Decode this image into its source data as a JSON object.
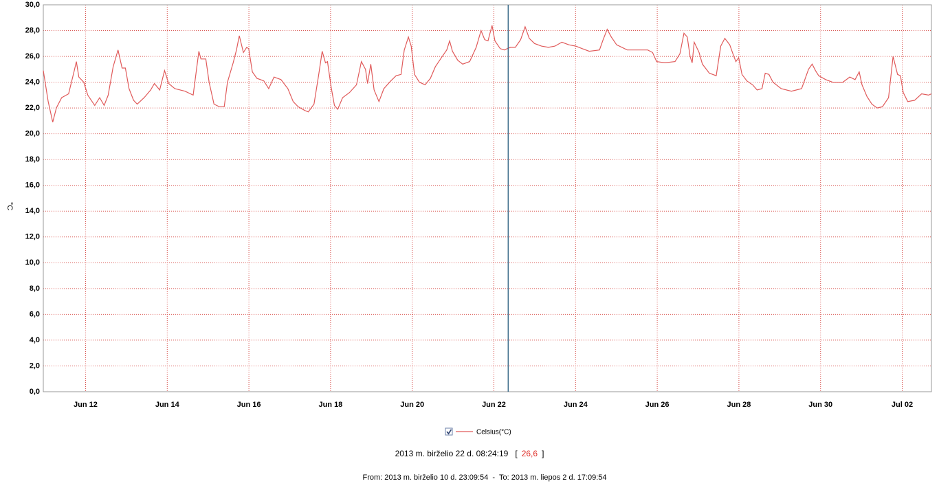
{
  "chart_data": {
    "type": "line",
    "y_label": "°C",
    "x": [
      0,
      0.12,
      0.23,
      0.32,
      0.45,
      0.62,
      0.75,
      0.81,
      0.87,
      0.99,
      1.09,
      1.26,
      1.38,
      1.49,
      1.59,
      1.71,
      1.83,
      1.93,
      2.01,
      2.1,
      2.21,
      2.3,
      2.47,
      2.63,
      2.72,
      2.85,
      2.97,
      3.07,
      3.22,
      3.47,
      3.67,
      3.81,
      3.86,
      3.98,
      4.06,
      4.18,
      4.31,
      4.43,
      4.51,
      4.65,
      4.73,
      4.8,
      4.9,
      4.98,
      5.03,
      5.12,
      5.23,
      5.4,
      5.52,
      5.65,
      5.82,
      5.99,
      6.12,
      6.24,
      6.41,
      6.49,
      6.63,
      6.74,
      6.83,
      6.91,
      6.96,
      7.05,
      7.13,
      7.21,
      7.33,
      7.5,
      7.67,
      7.79,
      7.89,
      7.94,
      8.02,
      8.1,
      8.22,
      8.34,
      8.51,
      8.64,
      8.76,
      8.84,
      8.94,
      9.01,
      9.09,
      9.21,
      9.35,
      9.48,
      9.6,
      9.77,
      9.88,
      9.95,
      10.02,
      10.15,
      10.27,
      10.44,
      10.6,
      10.72,
      10.81,
      10.89,
      10.99,
      11.06,
      11.19,
      11.29,
      11.36,
      11.44,
      11.56,
      11.69,
      11.8,
      11.9,
      12.03,
      12.2,
      12.37,
      12.53,
      12.7,
      12.87,
      13.04,
      13.2,
      13.37,
      13.62,
      13.71,
      13.81,
      13.91,
      14.04,
      14.3,
      14.55,
      14.8,
      14.92,
      15.02,
      15.22,
      15.47,
      15.59,
      15.69,
      15.77,
      15.84,
      15.89,
      15.94,
      16.06,
      16.14,
      16.31,
      16.48,
      16.59,
      16.69,
      16.81,
      16.9,
      16.96,
      17.03,
      17.11,
      17.23,
      17.37,
      17.48,
      17.6,
      17.68,
      17.77,
      17.87,
      18.07,
      18.32,
      18.57,
      18.74,
      18.83,
      18.91,
      18.99,
      19.16,
      19.33,
      19.58,
      19.75,
      19.88,
      19.98,
      20.05,
      20.17,
      20.29,
      20.42,
      20.55,
      20.7,
      20.81,
      20.92,
      20.99,
      21.06,
      21.17,
      21.34,
      21.51,
      21.68,
      21.75
    ],
    "series": [
      {
        "name": "Celsius(°C)",
        "color": "#e05a5a",
        "values": [
          24.9,
          22.5,
          20.9,
          22.0,
          22.8,
          23.1,
          24.8,
          25.6,
          24.4,
          24.0,
          23.0,
          22.2,
          22.8,
          22.2,
          23.0,
          25.2,
          26.5,
          25.1,
          25.1,
          23.5,
          22.6,
          22.3,
          22.8,
          23.4,
          23.9,
          23.4,
          24.9,
          23.9,
          23.5,
          23.3,
          23.0,
          26.4,
          25.8,
          25.8,
          24.0,
          22.3,
          22.1,
          22.1,
          24.0,
          25.5,
          26.5,
          27.6,
          26.3,
          26.7,
          26.6,
          24.8,
          24.3,
          24.1,
          23.5,
          24.4,
          24.2,
          23.5,
          22.5,
          22.1,
          21.8,
          21.7,
          22.3,
          24.5,
          26.4,
          25.5,
          25.6,
          23.6,
          22.2,
          21.9,
          22.8,
          23.2,
          23.8,
          25.6,
          25.0,
          23.9,
          25.4,
          23.4,
          22.5,
          23.5,
          24.1,
          24.5,
          24.6,
          26.5,
          27.5,
          26.8,
          24.6,
          24.0,
          23.8,
          24.3,
          25.2,
          26.0,
          26.5,
          27.2,
          26.4,
          25.7,
          25.4,
          25.6,
          26.7,
          28.0,
          27.3,
          27.2,
          28.4,
          27.2,
          26.6,
          26.5,
          26.6,
          26.7,
          26.7,
          27.3,
          28.3,
          27.4,
          27.0,
          26.8,
          26.7,
          26.8,
          27.1,
          26.9,
          26.8,
          26.6,
          26.4,
          26.5,
          27.3,
          28.1,
          27.5,
          26.9,
          26.5,
          26.5,
          26.5,
          26.3,
          25.6,
          25.5,
          25.6,
          26.2,
          27.8,
          27.5,
          26.0,
          25.5,
          27.1,
          26.3,
          25.4,
          24.7,
          24.5,
          26.8,
          27.4,
          26.9,
          26.1,
          25.6,
          25.9,
          24.6,
          24.1,
          23.8,
          23.4,
          23.5,
          24.7,
          24.6,
          24.0,
          23.5,
          23.3,
          23.5,
          25.0,
          25.4,
          24.9,
          24.5,
          24.2,
          24.0,
          24.0,
          24.4,
          24.2,
          24.8,
          23.8,
          22.9,
          22.3,
          22.0,
          22.1,
          22.8,
          26.0,
          24.6,
          24.5,
          23.2,
          22.5,
          22.6,
          23.1,
          23.0,
          23.1
        ]
      }
    ],
    "xlim": [
      0,
      21.75
    ],
    "xticks": [
      {
        "value": 1.035,
        "label": "Jun 12"
      },
      {
        "value": 3.035,
        "label": "Jun 14"
      },
      {
        "value": 5.035,
        "label": "Jun 16"
      },
      {
        "value": 7.035,
        "label": "Jun 18"
      },
      {
        "value": 9.035,
        "label": "Jun 20"
      },
      {
        "value": 11.035,
        "label": "Jun 22"
      },
      {
        "value": 13.035,
        "label": "Jun 24"
      },
      {
        "value": 15.035,
        "label": "Jun 26"
      },
      {
        "value": 17.035,
        "label": "Jun 28"
      },
      {
        "value": 19.035,
        "label": "Jun 30"
      },
      {
        "value": 21.035,
        "label": "Jul 02"
      }
    ],
    "ylim": [
      0,
      30
    ],
    "yticks": [
      {
        "value": 0,
        "label": "0,0"
      },
      {
        "value": 2,
        "label": "2,0"
      },
      {
        "value": 4,
        "label": "4,0"
      },
      {
        "value": 6,
        "label": "6,0"
      },
      {
        "value": 8,
        "label": "8,0"
      },
      {
        "value": 10,
        "label": "10,0"
      },
      {
        "value": 12,
        "label": "12,0"
      },
      {
        "value": 14,
        "label": "14,0"
      },
      {
        "value": 16,
        "label": "16,0"
      },
      {
        "value": 18,
        "label": "18,0"
      },
      {
        "value": 20,
        "label": "20,0"
      },
      {
        "value": 22,
        "label": "22,0"
      },
      {
        "value": 24,
        "label": "24,0"
      },
      {
        "value": 26,
        "label": "26,0"
      },
      {
        "value": 28,
        "label": "28,0"
      },
      {
        "value": 30,
        "label": "30,0"
      }
    ],
    "grid": true,
    "cursor": {
      "x": 11.385,
      "color": "#3f6e8c",
      "time": "2013 m. birželio 22 d. 08:24:19",
      "value": 26.6,
      "value_label": "26,6",
      "brackets": [
        "[",
        "]"
      ]
    },
    "range_text": "From: 2013 m. birželio 10 d. 23:09:54  -  To: 2013 m. liepos 2 d. 17:09:54"
  }
}
